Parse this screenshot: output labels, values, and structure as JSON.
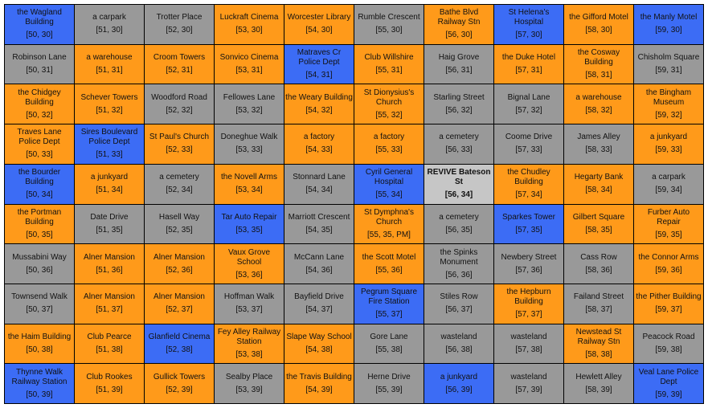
{
  "colors": {
    "orange": "#ff9a1a",
    "gray": "#999999",
    "blue": "#3c6cf5",
    "current": "#c6c6c6"
  },
  "rows": [
    [
      {
        "name": "the Wagland Building",
        "coord": "[50, 30]",
        "type": "blue"
      },
      {
        "name": "a carpark",
        "coord": "[51, 30]",
        "type": "gray"
      },
      {
        "name": "Trotter Place",
        "coord": "[52, 30]",
        "type": "gray"
      },
      {
        "name": "Luckraft Cinema",
        "coord": "[53, 30]",
        "type": "orange"
      },
      {
        "name": "Worcester Library",
        "coord": "[54, 30]",
        "type": "orange"
      },
      {
        "name": "Rumble Crescent",
        "coord": "[55, 30]",
        "type": "gray"
      },
      {
        "name": "Bathe Blvd Railway Stn",
        "coord": "[56, 30]",
        "type": "orange"
      },
      {
        "name": "St Helena's Hospital",
        "coord": "[57, 30]",
        "type": "blue"
      },
      {
        "name": "the Gifford Motel",
        "coord": "[58, 30]",
        "type": "orange"
      },
      {
        "name": "the Manly Motel",
        "coord": "[59, 30]",
        "type": "blue"
      }
    ],
    [
      {
        "name": "Robinson Lane",
        "coord": "[50, 31]",
        "type": "gray"
      },
      {
        "name": "a warehouse",
        "coord": "[51, 31]",
        "type": "orange"
      },
      {
        "name": "Croom Towers",
        "coord": "[52, 31]",
        "type": "orange"
      },
      {
        "name": "Sonvico Cinema",
        "coord": "[53, 31]",
        "type": "orange"
      },
      {
        "name": "Matraves Cr Police Dept",
        "coord": "[54, 31]",
        "type": "blue"
      },
      {
        "name": "Club Willshire",
        "coord": "[55, 31]",
        "type": "orange"
      },
      {
        "name": "Haig Grove",
        "coord": "[56, 31]",
        "type": "gray"
      },
      {
        "name": "the Duke Hotel",
        "coord": "[57, 31]",
        "type": "orange"
      },
      {
        "name": "the Cosway Building",
        "coord": "[58, 31]",
        "type": "orange"
      },
      {
        "name": "Chisholm Square",
        "coord": "[59, 31]",
        "type": "gray"
      }
    ],
    [
      {
        "name": "the Chidgey Building",
        "coord": "[50, 32]",
        "type": "orange"
      },
      {
        "name": "Schever Towers",
        "coord": "[51, 32]",
        "type": "orange"
      },
      {
        "name": "Woodford Road",
        "coord": "[52, 32]",
        "type": "gray"
      },
      {
        "name": "Fellowes Lane",
        "coord": "[53, 32]",
        "type": "gray"
      },
      {
        "name": "the Weary Building",
        "coord": "[54, 32]",
        "type": "orange"
      },
      {
        "name": "St Dionysius's Church",
        "coord": "[55, 32]",
        "type": "orange"
      },
      {
        "name": "Starling Street",
        "coord": "[56, 32]",
        "type": "gray"
      },
      {
        "name": "Bignal Lane",
        "coord": "[57, 32]",
        "type": "gray"
      },
      {
        "name": "a warehouse",
        "coord": "[58, 32]",
        "type": "orange"
      },
      {
        "name": "the Bingham Museum",
        "coord": "[59, 32]",
        "type": "orange"
      }
    ],
    [
      {
        "name": "Traves Lane Police Dept",
        "coord": "[50, 33]",
        "type": "orange"
      },
      {
        "name": "Sires Boulevard Police Dept",
        "coord": "[51, 33]",
        "type": "blue"
      },
      {
        "name": "St Paul's Church",
        "coord": "[52, 33]",
        "type": "orange"
      },
      {
        "name": "Doneghue Walk",
        "coord": "[53, 33]",
        "type": "gray"
      },
      {
        "name": "a factory",
        "coord": "[54, 33]",
        "type": "orange"
      },
      {
        "name": "a factory",
        "coord": "[55, 33]",
        "type": "orange"
      },
      {
        "name": "a cemetery",
        "coord": "[56, 33]",
        "type": "gray"
      },
      {
        "name": "Coome Drive",
        "coord": "[57, 33]",
        "type": "gray"
      },
      {
        "name": "James Alley",
        "coord": "[58, 33]",
        "type": "gray"
      },
      {
        "name": "a junkyard",
        "coord": "[59, 33]",
        "type": "orange"
      }
    ],
    [
      {
        "name": "the Bourder Building",
        "coord": "[50, 34]",
        "type": "blue"
      },
      {
        "name": "a junkyard",
        "coord": "[51, 34]",
        "type": "orange"
      },
      {
        "name": "a cemetery",
        "coord": "[52, 34]",
        "type": "gray"
      },
      {
        "name": "the Novell Arms",
        "coord": "[53, 34]",
        "type": "orange"
      },
      {
        "name": "Stonnard Lane",
        "coord": "[54, 34]",
        "type": "gray"
      },
      {
        "name": "Cyril General Hospital",
        "coord": "[55, 34]",
        "type": "blue"
      },
      {
        "name": "REVIVE Bateson St",
        "coord": "[56, 34]",
        "type": "current"
      },
      {
        "name": "the Chudley Building",
        "coord": "[57, 34]",
        "type": "orange"
      },
      {
        "name": "Hegarty Bank",
        "coord": "[58, 34]",
        "type": "orange"
      },
      {
        "name": "a carpark",
        "coord": "[59, 34]",
        "type": "gray"
      }
    ],
    [
      {
        "name": "the Portman Building",
        "coord": "[50, 35]",
        "type": "orange"
      },
      {
        "name": "Date Drive",
        "coord": "[51, 35]",
        "type": "gray"
      },
      {
        "name": "Hasell Way",
        "coord": "[52, 35]",
        "type": "gray"
      },
      {
        "name": "Tar Auto Repair",
        "coord": "[53, 35]",
        "type": "blue"
      },
      {
        "name": "Marriott Crescent",
        "coord": "[54, 35]",
        "type": "gray"
      },
      {
        "name": "St Dymphna's Church",
        "coord": "[55, 35, PM]",
        "type": "orange"
      },
      {
        "name": "a cemetery",
        "coord": "[56, 35]",
        "type": "gray"
      },
      {
        "name": "Sparkes Tower",
        "coord": "[57, 35]",
        "type": "blue"
      },
      {
        "name": "Gilbert Square",
        "coord": "[58, 35]",
        "type": "orange"
      },
      {
        "name": "Furber Auto Repair",
        "coord": "[59, 35]",
        "type": "orange"
      }
    ],
    [
      {
        "name": "Mussabini Way",
        "coord": "[50, 36]",
        "type": "gray"
      },
      {
        "name": "Alner Mansion",
        "coord": "[51, 36]",
        "type": "orange"
      },
      {
        "name": "Alner Mansion",
        "coord": "[52, 36]",
        "type": "orange"
      },
      {
        "name": "Vaux Grove School",
        "coord": "[53, 36]",
        "type": "orange"
      },
      {
        "name": "McCann Lane",
        "coord": "[54, 36]",
        "type": "gray"
      },
      {
        "name": "the Scott Motel",
        "coord": "[55, 36]",
        "type": "orange"
      },
      {
        "name": "the Spinks Monument",
        "coord": "[56, 36]",
        "type": "gray"
      },
      {
        "name": "Newbery Street",
        "coord": "[57, 36]",
        "type": "gray"
      },
      {
        "name": "Cass Row",
        "coord": "[58, 36]",
        "type": "gray"
      },
      {
        "name": "the Connor Arms",
        "coord": "[59, 36]",
        "type": "orange"
      }
    ],
    [
      {
        "name": "Townsend Walk",
        "coord": "[50, 37]",
        "type": "gray"
      },
      {
        "name": "Alner Mansion",
        "coord": "[51, 37]",
        "type": "orange"
      },
      {
        "name": "Alner Mansion",
        "coord": "[52, 37]",
        "type": "orange"
      },
      {
        "name": "Hoffman Walk",
        "coord": "[53, 37]",
        "type": "gray"
      },
      {
        "name": "Bayfield Drive",
        "coord": "[54, 37]",
        "type": "gray"
      },
      {
        "name": "Pegrum Square Fire Station",
        "coord": "[55, 37]",
        "type": "blue"
      },
      {
        "name": "Stiles Row",
        "coord": "[56, 37]",
        "type": "gray"
      },
      {
        "name": "the Hepburn Building",
        "coord": "[57, 37]",
        "type": "orange"
      },
      {
        "name": "Failand Street",
        "coord": "[58, 37]",
        "type": "gray"
      },
      {
        "name": "the Pither Building",
        "coord": "[59, 37]",
        "type": "orange"
      }
    ],
    [
      {
        "name": "the Haim Building",
        "coord": "[50, 38]",
        "type": "orange"
      },
      {
        "name": "Club Pearce",
        "coord": "[51, 38]",
        "type": "orange"
      },
      {
        "name": "Glanfield Cinema",
        "coord": "[52, 38]",
        "type": "blue"
      },
      {
        "name": "Fey Alley Railway Station",
        "coord": "[53, 38]",
        "type": "orange"
      },
      {
        "name": "Slape Way School",
        "coord": "[54, 38]",
        "type": "orange"
      },
      {
        "name": "Gore Lane",
        "coord": "[55, 38]",
        "type": "gray"
      },
      {
        "name": "wasteland",
        "coord": "[56, 38]",
        "type": "gray"
      },
      {
        "name": "wasteland",
        "coord": "[57, 38]",
        "type": "gray"
      },
      {
        "name": "Newstead St Railway Stn",
        "coord": "[58, 38]",
        "type": "orange"
      },
      {
        "name": "Peacock Road",
        "coord": "[59, 38]",
        "type": "gray"
      }
    ],
    [
      {
        "name": "Thynne Walk Railway Station",
        "coord": "[50, 39]",
        "type": "blue"
      },
      {
        "name": "Club Rookes",
        "coord": "[51, 39]",
        "type": "orange"
      },
      {
        "name": "Gullick Towers",
        "coord": "[52, 39]",
        "type": "orange"
      },
      {
        "name": "Sealby Place",
        "coord": "[53, 39]",
        "type": "gray"
      },
      {
        "name": "the Travis Building",
        "coord": "[54, 39]",
        "type": "orange"
      },
      {
        "name": "Herne Drive",
        "coord": "[55, 39]",
        "type": "gray"
      },
      {
        "name": "a junkyard",
        "coord": "[56, 39]",
        "type": "blue"
      },
      {
        "name": "wasteland",
        "coord": "[57, 39]",
        "type": "gray"
      },
      {
        "name": "Hewlett Alley",
        "coord": "[58, 39]",
        "type": "gray"
      },
      {
        "name": "Veal Lane Police Dept",
        "coord": "[59, 39]",
        "type": "blue"
      }
    ]
  ]
}
